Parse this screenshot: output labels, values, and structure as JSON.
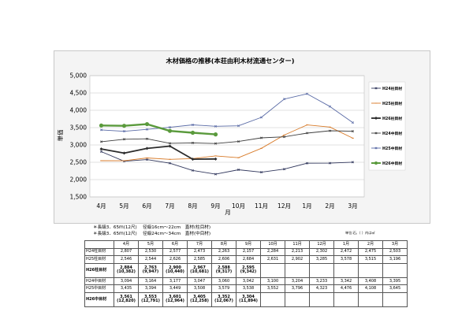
{
  "chart_data": {
    "type": "line",
    "title": "木材価格の推移(本荘由利木材流通センター)",
    "xlabel": "月",
    "ylabel": "単価",
    "categories": [
      "4月",
      "5月",
      "6月",
      "7月",
      "8月",
      "9月",
      "10月",
      "11月",
      "12月",
      "1月",
      "2月",
      "3月"
    ],
    "ylim": [
      1500,
      5000
    ],
    "yticks": [
      "1,500",
      "2,000",
      "2,500",
      "3,000",
      "3,500",
      "4,000",
      "4,500",
      "5,000"
    ],
    "grid": true,
    "legend_position": "right",
    "series": [
      {
        "name": "H24柱目材",
        "color": "#33395e",
        "values": [
          2807,
          2530,
          2577,
          2473,
          2263,
          2157,
          2284,
          2213,
          2302,
          2472,
          2475,
          2503
        ]
      },
      {
        "name": "H25柱目材",
        "color": "#d87a28",
        "values": [
          2546,
          2544,
          2626,
          2585,
          2606,
          2684,
          2631,
          2902,
          3285,
          3578,
          3515,
          3196
        ]
      },
      {
        "name": "H26柱目材",
        "color": "#2b2b2b",
        "values": [
          2884,
          2763,
          2900,
          2967,
          2588,
          2595,
          null,
          null,
          null,
          null,
          null,
          null
        ]
      },
      {
        "name": "H24中目材",
        "color": "#3e3e3e",
        "values": [
          3094,
          3164,
          3177,
          3047,
          3060,
          3042,
          3100,
          3204,
          3233,
          3342,
          3408,
          3395
        ]
      },
      {
        "name": "H25中目材",
        "color": "#5a6ba6",
        "values": [
          3435,
          3394,
          3449,
          3508,
          3579,
          3538,
          3552,
          3796,
          4323,
          4476,
          4108,
          3645
        ]
      },
      {
        "name": "H26中目材",
        "color": "#5a9a3c",
        "values": [
          3561,
          3553,
          3601,
          3405,
          3352,
          3304,
          null,
          null,
          null,
          null,
          null,
          null
        ]
      }
    ]
  },
  "notes": {
    "line1": "＊長級3．65ｍ(12尺)　 径級16cm〜22cm　直材(柱目材)",
    "line2": "＊長級3．65ｍ(12尺)　 径級24cm〜34cm　直材(中目材)",
    "unit": "単位:石,（ ）内は㎥"
  },
  "table": {
    "header": [
      "",
      "4月",
      "5月",
      "6月",
      "7月",
      "8月",
      "9月",
      "10月",
      "11月",
      "12月",
      "1月",
      "2月",
      "3月"
    ],
    "rows": [
      {
        "label": "H24柱目材",
        "cells": [
          "2,807",
          "2,530",
          "2,577",
          "2,473",
          "2,263",
          "2,157",
          "2,284",
          "2,213",
          "2,302",
          "2,472",
          "2,475",
          "2,503"
        ]
      },
      {
        "label": "H25柱目材",
        "cells": [
          "2,546",
          "2,544",
          "2,626",
          "2,585",
          "2,606",
          "2,684",
          "2,631",
          "2,902",
          "3,285",
          "3,578",
          "3,515",
          "3,196"
        ]
      },
      {
        "label": "H26柱目材",
        "cells": [
          "2,884",
          "2,763",
          "2,900",
          "2,967",
          "2,588",
          "2,595",
          "",
          "",
          "",
          "",
          "",
          ""
        ],
        "sub": [
          "(10,382)",
          "(9,947)",
          "(10,440)",
          "(10,681)",
          "(9,317)",
          "(9,342)",
          "",
          "",
          "",
          "",
          "",
          ""
        ]
      },
      {
        "label": "H24中目材",
        "cells": [
          "3,094",
          "3,164",
          "3,177",
          "3,047",
          "3,060",
          "3,042",
          "3,100",
          "3,204",
          "3,233",
          "3,342",
          "3,408",
          "3,395"
        ]
      },
      {
        "label": "H25中目材",
        "cells": [
          "3,435",
          "3,394",
          "3,449",
          "3,508",
          "3,579",
          "3,538",
          "3,552",
          "3,796",
          "4,323",
          "4,476",
          "4,108",
          "3,645"
        ]
      },
      {
        "label": "H26中目材",
        "cells": [
          "3,561",
          "3,553",
          "3,601",
          "3,405",
          "3,352",
          "3,304",
          "",
          "",
          "",
          "",
          "",
          ""
        ],
        "sub": [
          "(12,820)",
          "(12,791)",
          "(12,964)",
          "(12,258)",
          "(12,067)",
          "(11,894)",
          "",
          "",
          "",
          "",
          "",
          ""
        ]
      }
    ]
  }
}
